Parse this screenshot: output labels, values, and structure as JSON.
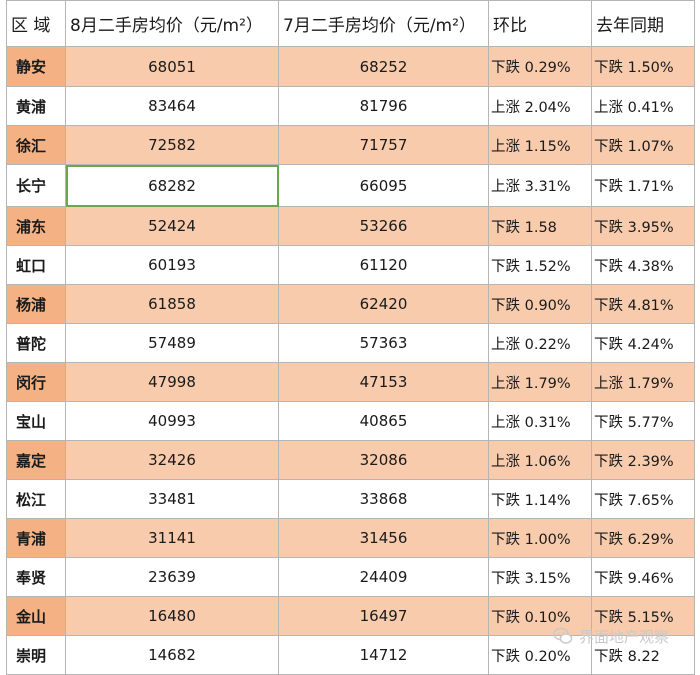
{
  "header": {
    "district": "区 域",
    "aug_price": "8月二手房均价（元/m²）",
    "jul_price": "7月二手房均价（元/m²）",
    "mom": "环比",
    "yoy": "去年同期"
  },
  "rows": [
    {
      "district": "静安",
      "aug": "68051",
      "jul": "68252",
      "mom": "下跌 0.29%",
      "yoy": "下跌 1.50%"
    },
    {
      "district": "黄浦",
      "aug": "83464",
      "jul": "81796",
      "mom": "上涨 2.04%",
      "yoy": "上涨 0.41%"
    },
    {
      "district": "徐汇",
      "aug": "72582",
      "jul": "71757",
      "mom": "上涨 1.15%",
      "yoy": "下跌 1.07%"
    },
    {
      "district": "长宁",
      "aug": "68282",
      "jul": "66095",
      "mom": "上涨 3.31%",
      "yoy": "下跌 1.71%"
    },
    {
      "district": "浦东",
      "aug": "52424",
      "jul": "53266",
      "mom": "下跌 1.58",
      "yoy": "下跌 3.95%"
    },
    {
      "district": "虹口",
      "aug": "60193",
      "jul": "61120",
      "mom": "下跌 1.52%",
      "yoy": "下跌 4.38%"
    },
    {
      "district": "杨浦",
      "aug": "61858",
      "jul": "62420",
      "mom": "下跌 0.90%",
      "yoy": "下跌 4.81%"
    },
    {
      "district": "普陀",
      "aug": "57489",
      "jul": "57363",
      "mom": "上涨 0.22%",
      "yoy": "下跌 4.24%"
    },
    {
      "district": "闵行",
      "aug": "47998",
      "jul": "47153",
      "mom": "上涨 1.79%",
      "yoy": "上涨 1.79%"
    },
    {
      "district": "宝山",
      "aug": "40993",
      "jul": "40865",
      "mom": "上涨 0.31%",
      "yoy": "下跌 5.77%"
    },
    {
      "district": "嘉定",
      "aug": "32426",
      "jul": "32086",
      "mom": "上涨 1.06%",
      "yoy": "下跌 2.39%"
    },
    {
      "district": "松江",
      "aug": "33481",
      "jul": "33868",
      "mom": "下跌 1.14%",
      "yoy": "下跌 7.65%"
    },
    {
      "district": "青浦",
      "aug": "31141",
      "jul": "31456",
      "mom": "下跌 1.00%",
      "yoy": "下跌 6.29%"
    },
    {
      "district": "奉贤",
      "aug": "23639",
      "jul": "24409",
      "mom": "下跌 3.15%",
      "yoy": "下跌 9.46%"
    },
    {
      "district": "金山",
      "aug": "16480",
      "jul": "16497",
      "mom": "下跌 0.10%",
      "yoy": "下跌 5.15%"
    },
    {
      "district": "崇明",
      "aug": "14682",
      "jul": "14712",
      "mom": "下跌 0.20%",
      "yoy": "下跌 8.22"
    }
  ],
  "watermark": {
    "text": "界面地产观察",
    "icon": "wechat-icon"
  },
  "colors": {
    "shade_row": "#f8cbad",
    "shade_district": "#f4b183",
    "selection": "#6aa84f"
  }
}
